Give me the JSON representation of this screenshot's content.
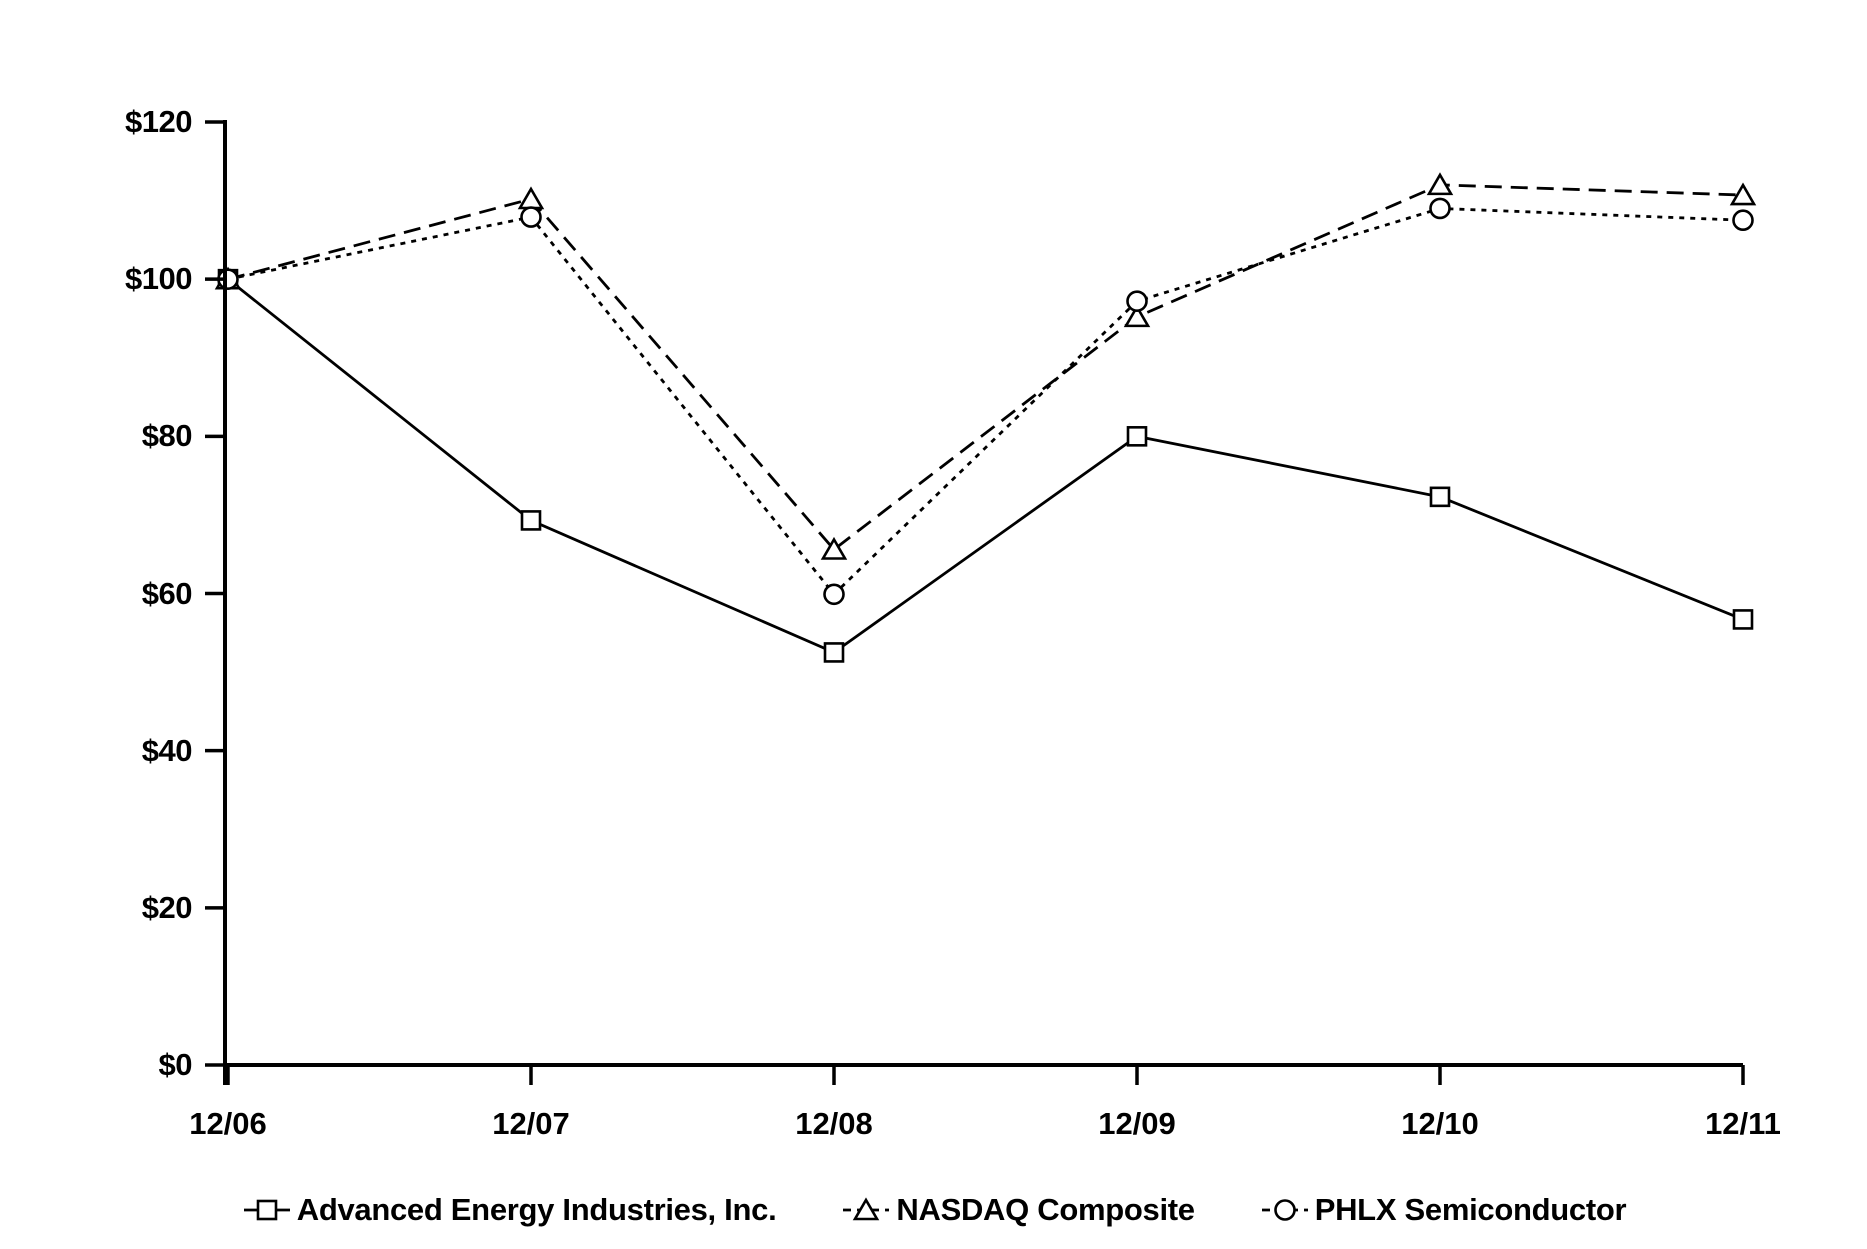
{
  "chart_data": {
    "type": "line",
    "categories": [
      "12/06",
      "12/07",
      "12/08",
      "12/09",
      "12/10",
      "12/11"
    ],
    "series": [
      {
        "name": "Advanced Energy Industries, Inc.",
        "marker": "square",
        "line_style": "solid",
        "values": [
          100,
          69.3,
          52.5,
          80.0,
          72.3,
          56.7
        ]
      },
      {
        "name": "NASDAQ Composite",
        "marker": "triangle",
        "line_style": "long-dash",
        "values": [
          100,
          110.2,
          65.6,
          95.2,
          112.0,
          110.7
        ]
      },
      {
        "name": "PHLX Semiconductor",
        "marker": "circle",
        "line_style": "short-dash",
        "values": [
          100,
          107.9,
          59.9,
          97.2,
          109.0,
          107.5
        ]
      }
    ],
    "ylim": [
      0,
      120
    ],
    "y_ticks": {
      "values": [
        0,
        20,
        40,
        60,
        80,
        100,
        120
      ],
      "labels": [
        "$0",
        "$20",
        "$40",
        "$60",
        "$80",
        "$100",
        "$120"
      ]
    },
    "xlabel": "",
    "ylabel": "",
    "grid": false,
    "legend_position": "bottom",
    "colors": {
      "foreground": "#000000",
      "background": "#ffffff"
    }
  }
}
